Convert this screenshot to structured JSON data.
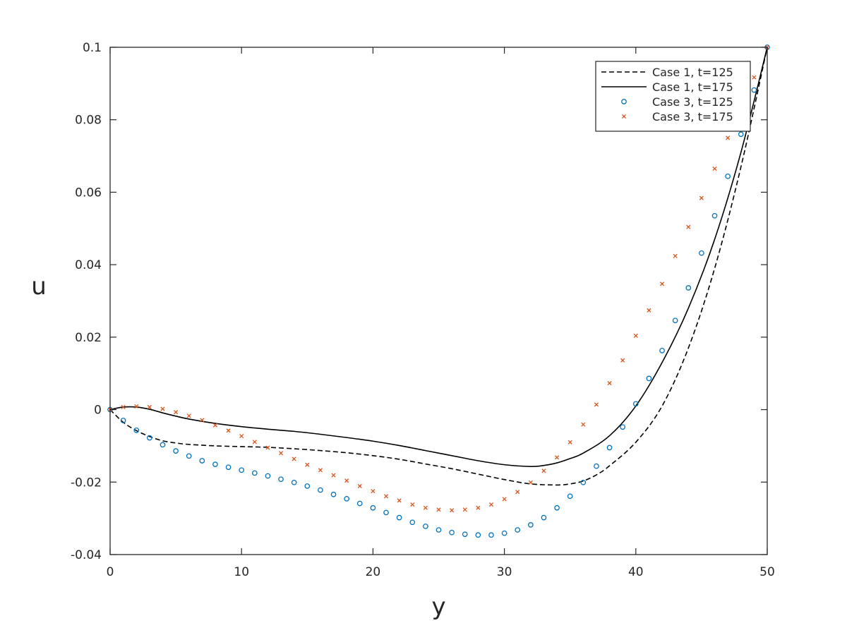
{
  "chart_data": {
    "type": "line",
    "title": "",
    "xlabel": "y",
    "ylabel": "u",
    "xlim": [
      0,
      50
    ],
    "ylim": [
      -0.04,
      0.1
    ],
    "xticks": [
      0,
      10,
      20,
      30,
      40,
      50
    ],
    "xtick_labels": [
      "0",
      "10",
      "20",
      "30",
      "40",
      "50"
    ],
    "yticks": [
      -0.04,
      -0.02,
      0,
      0.02,
      0.04,
      0.06,
      0.08,
      0.1
    ],
    "ytick_labels": [
      "-0.04",
      "-0.02",
      "0",
      "0.02",
      "0.04",
      "0.06",
      "0.08",
      "0.1"
    ],
    "grid": false,
    "legend_position": "top-right",
    "series": [
      {
        "name": "Case 1, t=125",
        "style": "dashed-line",
        "color": "#000000",
        "x": [
          0,
          1,
          2,
          3,
          4,
          5,
          6,
          8,
          10,
          12,
          14,
          16,
          18,
          20,
          22,
          24,
          26,
          28,
          30,
          32,
          34,
          35,
          36,
          37,
          38,
          40,
          42,
          44,
          46,
          48,
          50
        ],
        "y": [
          0,
          -0.0035,
          -0.0058,
          -0.0074,
          -0.0086,
          -0.0092,
          -0.0096,
          -0.01,
          -0.0102,
          -0.0104,
          -0.0108,
          -0.0113,
          -0.0119,
          -0.0127,
          -0.0137,
          -0.015,
          -0.0163,
          -0.0178,
          -0.0193,
          -0.0205,
          -0.0208,
          -0.0205,
          -0.0197,
          -0.018,
          -0.0155,
          -0.009,
          0.001,
          0.017,
          0.039,
          0.067,
          0.1
        ]
      },
      {
        "name": "Case 1, t=175",
        "style": "solid-line",
        "color": "#000000",
        "x": [
          0,
          1,
          2,
          3,
          4,
          5,
          6,
          8,
          10,
          12,
          14,
          16,
          18,
          20,
          22,
          24,
          26,
          28,
          30,
          32,
          33,
          34,
          35,
          36,
          38,
          40,
          42,
          44,
          46,
          48,
          50
        ],
        "y": [
          0,
          0.0007,
          0.0007,
          0.0001,
          -0.0009,
          -0.0018,
          -0.0026,
          -0.0038,
          -0.0047,
          -0.0054,
          -0.006,
          -0.0068,
          -0.0077,
          -0.0087,
          -0.0099,
          -0.0113,
          -0.0127,
          -0.0141,
          -0.0152,
          -0.0157,
          -0.0154,
          -0.0147,
          -0.0135,
          -0.012,
          -0.0072,
          0.001,
          0.013,
          0.028,
          0.047,
          0.071,
          0.1
        ]
      },
      {
        "name": "Case 3, t=125",
        "style": "circle-markers",
        "color": "#0072bd",
        "x": [
          0,
          1,
          2,
          3,
          4,
          5,
          6,
          7,
          8,
          9,
          10,
          11,
          12,
          13,
          14,
          15,
          16,
          17,
          18,
          19,
          20,
          21,
          22,
          23,
          24,
          25,
          26,
          27,
          28,
          29,
          30,
          31,
          32,
          33,
          34,
          35,
          36,
          37,
          38,
          39,
          40,
          41,
          42,
          43,
          44,
          45,
          46,
          47,
          48,
          49,
          50
        ],
        "y": [
          0,
          -0.003,
          -0.0057,
          -0.0078,
          -0.0097,
          -0.0114,
          -0.0128,
          -0.0141,
          -0.0151,
          -0.0159,
          -0.0167,
          -0.0175,
          -0.0183,
          -0.0192,
          -0.0201,
          -0.0211,
          -0.0222,
          -0.0234,
          -0.0246,
          -0.0259,
          -0.0271,
          -0.0284,
          -0.0298,
          -0.0311,
          -0.0322,
          -0.0332,
          -0.0339,
          -0.0344,
          -0.0346,
          -0.0346,
          -0.0341,
          -0.0332,
          -0.0318,
          -0.0298,
          -0.0271,
          -0.0239,
          -0.0201,
          -0.0156,
          -0.0105,
          -0.0048,
          0.0016,
          0.0086,
          0.0163,
          0.0246,
          0.0336,
          0.0432,
          0.0535,
          0.0644,
          0.076,
          0.0882,
          0.1
        ]
      },
      {
        "name": "Case 3, t=175",
        "style": "x-markers",
        "color": "#d95319",
        "x": [
          0,
          1,
          2,
          3,
          4,
          5,
          6,
          7,
          8,
          9,
          10,
          11,
          12,
          13,
          14,
          15,
          16,
          17,
          18,
          19,
          20,
          21,
          22,
          23,
          24,
          25,
          26,
          27,
          28,
          29,
          30,
          31,
          32,
          33,
          34,
          35,
          36,
          37,
          38,
          39,
          40,
          41,
          42,
          43,
          44,
          45,
          46,
          47,
          48,
          49,
          50
        ],
        "y": [
          0,
          0.0007,
          0.0009,
          0.0007,
          0.0002,
          -0.0007,
          -0.0017,
          -0.0029,
          -0.0043,
          -0.0058,
          -0.0073,
          -0.0089,
          -0.0105,
          -0.012,
          -0.0136,
          -0.0152,
          -0.0167,
          -0.0181,
          -0.0196,
          -0.0211,
          -0.0225,
          -0.0239,
          -0.0251,
          -0.0262,
          -0.0271,
          -0.0276,
          -0.0278,
          -0.0276,
          -0.0271,
          -0.0262,
          -0.0247,
          -0.0227,
          -0.0201,
          -0.0169,
          -0.0132,
          -0.009,
          -0.0041,
          0.0014,
          0.0073,
          0.0136,
          0.0204,
          0.0274,
          0.0347,
          0.0424,
          0.0504,
          0.0584,
          0.0665,
          0.075,
          0.0832,
          0.0917,
          0.1
        ]
      }
    ]
  }
}
